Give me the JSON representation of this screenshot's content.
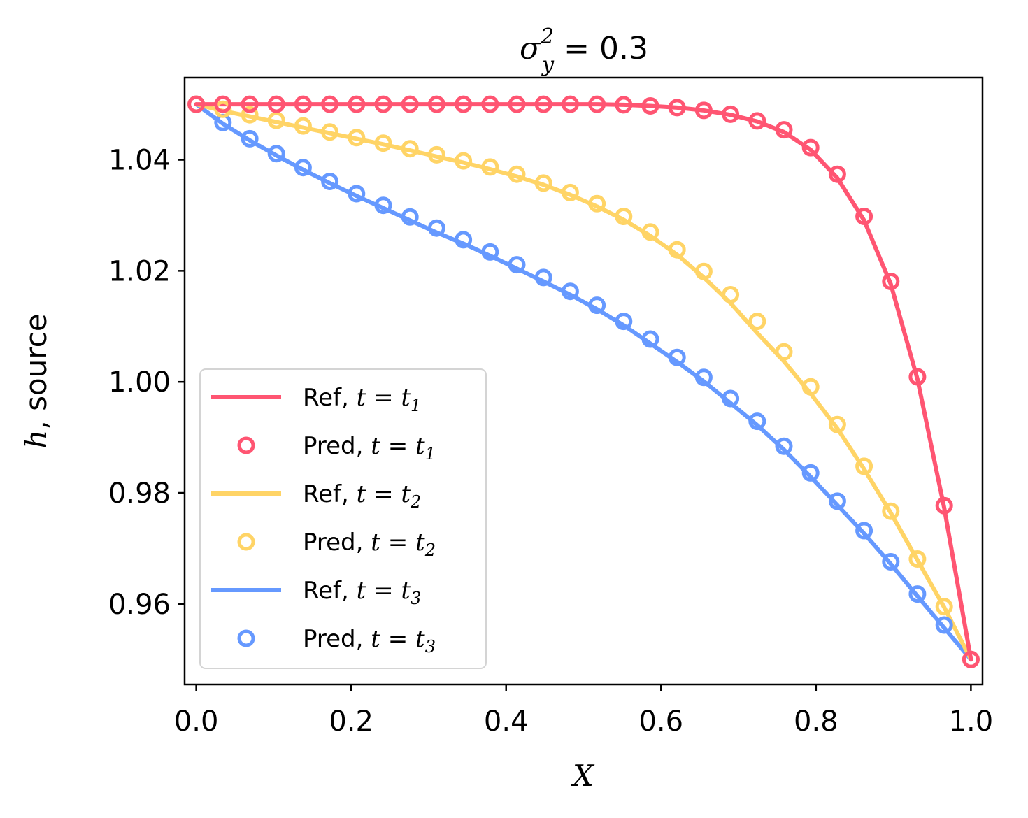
{
  "chart_data": {
    "type": "line",
    "title": {
      "base": "σ",
      "sub": "y",
      "sup": "2",
      "rest": " = 0.3"
    },
    "xlabel": "X",
    "ylabel": {
      "italic": "h",
      "rest": ", source"
    },
    "xlim": [
      -0.015,
      1.015
    ],
    "ylim": [
      0.9455,
      1.0548
    ],
    "xticks": [
      0.0,
      0.2,
      0.4,
      0.6,
      0.8,
      1.0
    ],
    "xtick_labels": [
      "0.0",
      "0.2",
      "0.4",
      "0.6",
      "0.8",
      "1.0"
    ],
    "yticks": [
      0.96,
      0.98,
      1.0,
      1.02,
      1.04
    ],
    "ytick_labels": [
      "0.96",
      "0.98",
      "1.00",
      "1.02",
      "1.04"
    ],
    "x": [
      0.0,
      0.0345,
      0.069,
      0.1034,
      0.1379,
      0.1724,
      0.2069,
      0.2414,
      0.2759,
      0.3103,
      0.3448,
      0.3793,
      0.4138,
      0.4483,
      0.4828,
      0.5172,
      0.5517,
      0.5862,
      0.6207,
      0.6552,
      0.6897,
      0.7241,
      0.7586,
      0.7931,
      0.8276,
      0.8621,
      0.8966,
      0.931,
      0.9655,
      1.0
    ],
    "series": [
      {
        "name": "t1",
        "color": "#FF5572",
        "ref_label": "Ref, ",
        "pred_label": "Pred, ",
        "ref_values": [
          1.05,
          1.05,
          1.05,
          1.05,
          1.05,
          1.05,
          1.05,
          1.05,
          1.05,
          1.05,
          1.05,
          1.05,
          1.05,
          1.05,
          1.05,
          1.05,
          1.0499,
          1.0497,
          1.0494,
          1.0489,
          1.0481,
          1.0469,
          1.045,
          1.0418,
          1.0367,
          1.0291,
          1.0176,
          1.0005,
          0.9773,
          0.95
        ],
        "pred_values": [
          1.05,
          1.05,
          1.05,
          1.05,
          1.05,
          1.05,
          1.05,
          1.05,
          1.05,
          1.05,
          1.05,
          1.05,
          1.05,
          1.05,
          1.05,
          1.05,
          1.0499,
          1.0497,
          1.0494,
          1.0489,
          1.0482,
          1.047,
          1.0454,
          1.0422,
          1.0374,
          1.0298,
          1.0181,
          1.0009,
          0.9777,
          0.95
        ]
      },
      {
        "name": "t2",
        "color": "#FFD466",
        "ref_label": "Ref, ",
        "pred_label": "Pred, ",
        "ref_values": [
          1.05,
          1.0488,
          1.0478,
          1.0468,
          1.0458,
          1.0448,
          1.0438,
          1.0428,
          1.0417,
          1.0406,
          1.0395,
          1.0383,
          1.037,
          1.0355,
          1.0337,
          1.0316,
          1.0292,
          1.0263,
          1.0229,
          1.0188,
          1.0142,
          1.0088,
          1.0037,
          0.9979,
          0.9916,
          0.9843,
          0.9764,
          0.9679,
          0.9594,
          0.95
        ],
        "pred_values": [
          1.05,
          1.0491,
          1.0481,
          1.0471,
          1.0461,
          1.045,
          1.044,
          1.043,
          1.042,
          1.0409,
          1.0398,
          1.0387,
          1.0374,
          1.0358,
          1.0341,
          1.0321,
          1.0298,
          1.027,
          1.0238,
          1.0199,
          1.0157,
          1.0109,
          1.0054,
          0.9991,
          0.9923,
          0.9848,
          0.9767,
          0.9681,
          0.9595,
          0.95
        ]
      },
      {
        "name": "t3",
        "color": "#6699FF",
        "ref_label": "Ref, ",
        "pred_label": "Pred, ",
        "ref_values": [
          1.05,
          1.0465,
          1.0435,
          1.0408,
          1.0382,
          1.0358,
          1.0335,
          1.0313,
          1.0291,
          1.0269,
          1.0249,
          1.0227,
          1.0204,
          1.0181,
          1.0157,
          1.0131,
          1.0102,
          1.0069,
          1.0036,
          1.0001,
          0.9962,
          0.9922,
          0.9878,
          0.9829,
          0.9778,
          0.9727,
          0.9672,
          0.9614,
          0.9557,
          0.95
        ],
        "pred_values": [
          1.05,
          1.0467,
          1.0438,
          1.0411,
          1.0386,
          1.0361,
          1.0339,
          1.0318,
          1.0297,
          1.0277,
          1.0256,
          1.0234,
          1.0211,
          1.0188,
          1.0163,
          1.0138,
          1.0109,
          1.0077,
          1.0044,
          1.0008,
          0.997,
          0.9929,
          0.9884,
          0.9836,
          0.9785,
          0.9732,
          0.9676,
          0.9618,
          0.9562,
          0.95
        ]
      }
    ],
    "legend_position": "lower-left",
    "grid": false
  }
}
